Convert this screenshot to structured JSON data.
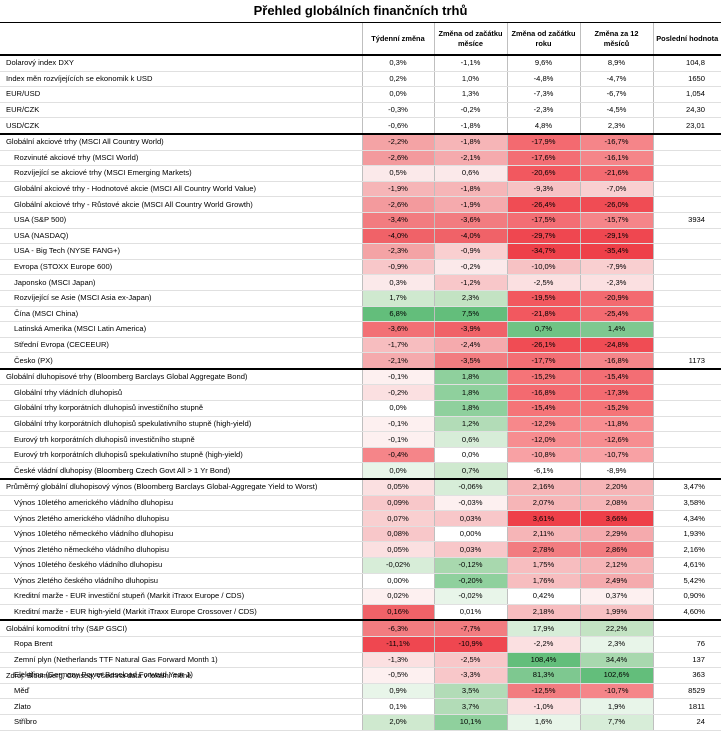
{
  "title": "Přehled globálních finančních trhů",
  "columns": [
    "",
    "Týdenní změna",
    "Změna od začátku měsíce",
    "Změna od začátku roku",
    "Změna za 12 měsíců",
    "Poslední hodnota"
  ],
  "rows": [
    {
      "label": "Dolarový index DXY",
      "g": 0,
      "values": [
        "0,3%",
        "-1,1%",
        "9,6%",
        "8,9%"
      ],
      "last": "104,8"
    },
    {
      "label": "Index měn rozvíjejících se ekonomik k USD",
      "g": 0,
      "values": [
        "0,2%",
        "1,0%",
        "-4,8%",
        "-4,7%"
      ],
      "last": "1650"
    },
    {
      "label": "EUR/USD",
      "g": 0,
      "values": [
        "0,0%",
        "1,3%",
        "-7,3%",
        "-6,7%"
      ],
      "last": "1,054"
    },
    {
      "label": "EUR/CZK",
      "g": 0,
      "values": [
        "-0,3%",
        "-0,2%",
        "-2,3%",
        "-4,5%"
      ],
      "last": "24,30"
    },
    {
      "label": "USD/CZK",
      "g": 0,
      "values": [
        "-0,6%",
        "-1,8%",
        "4,8%",
        "2,3%"
      ],
      "last": "23,01"
    },
    {
      "label": "Globální akciové trhy (MSCI All Country World)",
      "g": 1,
      "values": [
        "-2,2%",
        "-1,8%",
        "-17,9%",
        "-16,7%"
      ],
      "last": ""
    },
    {
      "label": "Rozvinuté akciové trhy (MSCI World)",
      "g": 2,
      "values": [
        "-2,6%",
        "-2,1%",
        "-17,6%",
        "-16,1%"
      ],
      "last": ""
    },
    {
      "label": "Rozvíjející se akciové trhy (MSCI Emerging Markets)",
      "g": 2,
      "values": [
        "0,5%",
        "0,6%",
        "-20,6%",
        "-21,6%"
      ],
      "last": ""
    },
    {
      "label": "Globální akciové trhy - Hodnotové akcie (MSCI All Country World Value)",
      "g": 2,
      "values": [
        "-1,9%",
        "-1,8%",
        "-9,3%",
        "-7,0%"
      ],
      "last": ""
    },
    {
      "label": "Globální akciové trhy - Růstové akcie (MSCI All Country World Growth)",
      "g": 2,
      "values": [
        "-2,6%",
        "-1,9%",
        "-26,4%",
        "-26,0%"
      ],
      "last": ""
    },
    {
      "label": "USA (S&P 500)",
      "g": 2,
      "values": [
        "-3,4%",
        "-3,6%",
        "-17,5%",
        "-15,7%"
      ],
      "last": "3934"
    },
    {
      "label": "USA (NASDAQ)",
      "g": 2,
      "values": [
        "-4,0%",
        "-4,0%",
        "-29,7%",
        "-29,1%"
      ],
      "last": ""
    },
    {
      "label": "USA - Big Tech (NYSE FANG+)",
      "g": 2,
      "values": [
        "-2,3%",
        "-0,9%",
        "-34,7%",
        "-35,4%"
      ],
      "last": ""
    },
    {
      "label": "Evropa (STOXX Europe 600)",
      "g": 2,
      "values": [
        "-0,9%",
        "-0,2%",
        "-10,0%",
        "-7,9%"
      ],
      "last": ""
    },
    {
      "label": "Japonsko (MSCI Japan)",
      "g": 2,
      "values": [
        "0,3%",
        "-1,2%",
        "-2,5%",
        "-2,3%"
      ],
      "last": ""
    },
    {
      "label": "Rozvíjející se Asie (MSCI Asia ex-Japan)",
      "g": 2,
      "values": [
        "1,7%",
        "2,3%",
        "-19,5%",
        "-20,9%"
      ],
      "last": ""
    },
    {
      "label": "Čína (MSCI China)",
      "g": 2,
      "values": [
        "6,8%",
        "7,5%",
        "-21,8%",
        "-25,4%"
      ],
      "last": ""
    },
    {
      "label": "Latinská Amerika (MSCI Latin America)",
      "g": 2,
      "values": [
        "-3,6%",
        "-3,9%",
        "0,7%",
        "1,4%"
      ],
      "last": ""
    },
    {
      "label": "Střední Evropa (CECEEUR)",
      "g": 2,
      "values": [
        "-1,7%",
        "-2,4%",
        "-26,1%",
        "-24,8%"
      ],
      "last": ""
    },
    {
      "label": "Česko (PX)",
      "g": 2,
      "values": [
        "-2,1%",
        "-3,5%",
        "-17,7%",
        "-16,8%"
      ],
      "last": "1173"
    },
    {
      "label": "Globální dluhopisové trhy (Bloomberg Barclays Global Aggregate Bond)",
      "g": 1,
      "values": [
        "-0,1%",
        "1,8%",
        "-15,2%",
        "-15,4%"
      ],
      "last": ""
    },
    {
      "label": "Globální trhy vládních dluhopisů",
      "g": 2,
      "values": [
        "-0,2%",
        "1,8%",
        "-16,8%",
        "-17,3%"
      ],
      "last": ""
    },
    {
      "label": "Globální trhy korporátních dluhopisů investičního stupně",
      "g": 2,
      "values": [
        "0,0%",
        "1,8%",
        "-15,4%",
        "-15,2%"
      ],
      "last": ""
    },
    {
      "label": "Globální trhy korporátních dluhopisů spekulativního stupně (high-yield)",
      "g": 2,
      "values": [
        "-0,1%",
        "1,2%",
        "-12,2%",
        "-11,8%"
      ],
      "last": ""
    },
    {
      "label": "Eurový trh korporátních dluhopisů investičního stupně",
      "g": 2,
      "values": [
        "-0,1%",
        "0,6%",
        "-12,0%",
        "-12,6%"
      ],
      "last": ""
    },
    {
      "label": "Eurový trh korporátních dluhopisů spekulativního stupně (high-yield)",
      "g": 2,
      "values": [
        "-0,4%",
        "0,0%",
        "-10,8%",
        "-10,7%"
      ],
      "last": ""
    },
    {
      "label": "České vládní dluhopisy (Bloomberg Czech Govt All > 1 Yr Bond)",
      "g": 2,
      "values": [
        "0,0%",
        "0,7%",
        "-6,1%",
        "-8,9%"
      ],
      "last": ""
    },
    {
      "label": "Průměrný globální dluhopisový výnos (Bloomberg Barclays Global-Aggregate Yield to Worst)",
      "g": 1,
      "values": [
        "0,05%",
        "-0,06%",
        "2,16%",
        "2,20%"
      ],
      "last": "3,47%"
    },
    {
      "label": "Výnos 10letého amerického vládního dluhopisu",
      "g": 2,
      "values": [
        "0,09%",
        "-0,03%",
        "2,07%",
        "2,08%"
      ],
      "last": "3,58%"
    },
    {
      "label": "Výnos 2letého amerického vládního dluhopisu",
      "g": 2,
      "values": [
        "0,07%",
        "0,03%",
        "3,61%",
        "3,66%"
      ],
      "last": "4,34%"
    },
    {
      "label": "Výnos 10letého německého vládního dluhopisu",
      "g": 2,
      "values": [
        "0,08%",
        "0,00%",
        "2,11%",
        "2,29%"
      ],
      "last": "1,93%"
    },
    {
      "label": "Výnos 2letého německého vládního dluhopisu",
      "g": 2,
      "values": [
        "0,05%",
        "0,03%",
        "2,78%",
        "2,86%"
      ],
      "last": "2,16%"
    },
    {
      "label": "Výnos 10letého českého vládního dluhopisu",
      "g": 2,
      "values": [
        "-0,02%",
        "-0,12%",
        "1,75%",
        "2,12%"
      ],
      "last": "4,61%"
    },
    {
      "label": "Výnos 2letého českého vládního dluhopisu",
      "g": 2,
      "values": [
        "0,00%",
        "-0,20%",
        "1,76%",
        "2,49%"
      ],
      "last": "5,42%"
    },
    {
      "label": "Kreditní marže - EUR investiční stupeň (Markit iTraxx Europe / CDS)",
      "g": 2,
      "values": [
        "0,02%",
        "-0,02%",
        "0,42%",
        "0,37%"
      ],
      "last": "0,90%"
    },
    {
      "label": "Kreditní marže - EUR high-yield (Markit iTraxx Europe Crossover / CDS)",
      "g": 2,
      "values": [
        "0,16%",
        "0,01%",
        "2,18%",
        "1,99%"
      ],
      "last": "4,60%"
    },
    {
      "label": "Globální komoditní trhy (S&P GSCI)",
      "g": 1,
      "values": [
        "-6,3%",
        "-7,7%",
        "17,9%",
        "22,2%"
      ],
      "last": ""
    },
    {
      "label": "Ropa Brent",
      "g": 2,
      "values": [
        "-11,1%",
        "-10,9%",
        "-2,2%",
        "2,3%"
      ],
      "last": "76"
    },
    {
      "label": "Zemní plyn (Netherlands TTF Natural Gas Forward Month 1)",
      "g": 2,
      "values": [
        "-1,3%",
        "-2,5%",
        "108,4%",
        "34,4%"
      ],
      "last": "137"
    },
    {
      "label": "Elektřina (Germany Power Baseload Forward Year 1)",
      "g": 2,
      "values": [
        "-0,5%",
        "-3,3%",
        "81,3%",
        "102,6%"
      ],
      "last": "363"
    },
    {
      "label": "Měď",
      "g": 2,
      "values": [
        "0,9%",
        "3,5%",
        "-12,5%",
        "-10,7%"
      ],
      "last": "8529"
    },
    {
      "label": "Zlato",
      "g": 2,
      "values": [
        "0,1%",
        "3,7%",
        "-1,0%",
        "1,9%"
      ],
      "last": "1811"
    },
    {
      "label": "Stříbro",
      "g": 2,
      "values": [
        "2,0%",
        "10,1%",
        "1,6%",
        "7,7%"
      ],
      "last": "24"
    }
  ],
  "heatmap": [
    [
      "",
      "",
      "",
      ""
    ],
    [
      "",
      "",
      "",
      ""
    ],
    [
      "",
      "",
      "",
      ""
    ],
    [
      "",
      "",
      "",
      ""
    ],
    [
      "",
      "",
      "",
      ""
    ],
    [
      "#f4a3a5",
      "#f6b5b7",
      "#f36a70",
      "#f58589"
    ],
    [
      "#f39a9d",
      "#f5aaad",
      "#f36e74",
      "#f58589"
    ],
    [
      "#fbe9ea",
      "#fbe9ea",
      "#f2585f",
      "#f36a70"
    ],
    [
      "#f6b5b7",
      "#f6b5b7",
      "#f7c2c4",
      "#f9cfd0"
    ],
    [
      "#f39a9d",
      "#f5aaad",
      "#f04c54",
      "#f04c54"
    ],
    [
      "#f27c80",
      "#f27c80",
      "#f36e74",
      "#f58589"
    ],
    [
      "#f06268",
      "#f06268",
      "#ef4750",
      "#ef4750"
    ],
    [
      "#f4a3a5",
      "#f9cfd0",
      "#ee4049",
      "#ee4049"
    ],
    [
      "#f8c7c9",
      "#fbe9ea",
      "#f7c2c4",
      "#f9cfd0"
    ],
    [
      "#fbe9ea",
      "#f8c7c9",
      "#fbe0e1",
      "#fbe0e1"
    ],
    [
      "#cfe9cf",
      "#c3e3c3",
      "#f2585f",
      "#f36a70"
    ],
    [
      "#63be7b",
      "#63be7b",
      "#f2585f",
      "#f36a70"
    ],
    [
      "#f27075",
      "#f06268",
      "#6fc384",
      "#7ec890"
    ],
    [
      "#f7bdbf",
      "#f5aaad",
      "#f04c54",
      "#f04c54"
    ],
    [
      "#f5aaad",
      "#f27c80",
      "#f36e74",
      "#f58589"
    ],
    [
      "#fdf0f0",
      "#8fd09d",
      "#f57478",
      "#f36e74"
    ],
    [
      "#fbe0e1",
      "#8fd09d",
      "#f36a70",
      "#f36a70"
    ],
    [
      "",
      "#8fd09d",
      "#f57478",
      "#f57478"
    ],
    [
      "#fdf0f0",
      "#b2dcb7",
      "#f7888b",
      "#f78d90"
    ],
    [
      "#fdf0f0",
      "#d7edd8",
      "#f78d90",
      "#f78d90"
    ],
    [
      "#f58589",
      "",
      "#f8a1a4",
      "#f8a1a4"
    ],
    [
      "#e8f5e9",
      "#cfe9cf",
      "",
      ""
    ],
    [
      "#fbe0e1",
      "#d7edd8",
      "#f6b5b7",
      "#f6b5b7"
    ],
    [
      "#f8c7c9",
      "#fdf0f0",
      "#f6b5b7",
      "#f6b5b7"
    ],
    [
      "#f9cfd0",
      "#f8c7c9",
      "#ee4049",
      "#ee4049"
    ],
    [
      "#f8c7c9",
      "",
      "#f6b5b7",
      "#f5aaad"
    ],
    [
      "#fbe0e1",
      "#f8c7c9",
      "#f27c80",
      "#f27c80"
    ],
    [
      "#d7edd8",
      "#a8d8ae",
      "#f7bdbf",
      "#f6b5b7"
    ],
    [
      "",
      "#8fd09d",
      "#f7bdbf",
      "#f5aaad"
    ],
    [
      "#fdf0f0",
      "#e8f5e9",
      "",
      "#fdf0f0"
    ],
    [
      "#f06268",
      "",
      "#f7bdbf",
      "#f7c2c4"
    ],
    [
      "#f27c80",
      "#f27c80",
      "#d7edd8",
      "#c3e3c3"
    ],
    [
      "#ef4750",
      "#ef4750",
      "#fbe0e1",
      "#e8f5e9"
    ],
    [
      "#fbe0e1",
      "#f8c7c9",
      "#63be7b",
      "#a8d8ae"
    ],
    [
      "#fdf0f0",
      "#f8c7c9",
      "#7ec890",
      "#63be7b"
    ],
    [
      "#e8f5e9",
      "#b2dcb7",
      "#f27c80",
      "#f58589"
    ],
    [
      "",
      "#b2dcb7",
      "#fbe0e1",
      "#e8f5e9"
    ],
    [
      "#cfe9cf",
      "#8fd09d",
      "#e8f5e9",
      "#d7edd8"
    ]
  ],
  "source": "Zdroj: Bloomberg, Conseq; Všechna data v lokální měně"
}
